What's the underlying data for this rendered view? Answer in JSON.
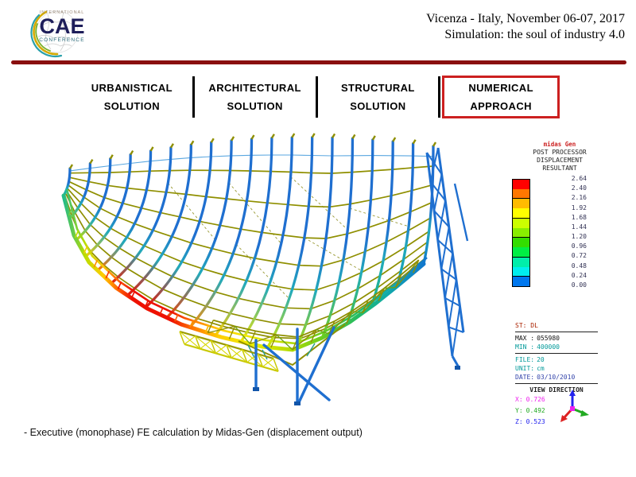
{
  "slide": {
    "logo": {
      "top_text": "INTERNATIONAL",
      "main_text": "CAE",
      "bottom_text": "CONFERENCE"
    },
    "title_line1": "Vicenza - Italy, November 06-07, 2017",
    "title_line2": "Simulation: the soul of industry 4.0",
    "caption": "- Executive (monophase) FE calculation by Midas-Gen (displacement output)"
  },
  "tabs": [
    {
      "line1": "URBANISTICAL",
      "line2": "SOLUTION",
      "active": false
    },
    {
      "line1": "ARCHITECTURAL",
      "line2": "SOLUTION",
      "active": false
    },
    {
      "line1": "STRUCTURAL",
      "line2": "SOLUTION",
      "active": false
    },
    {
      "line1": "NUMERICAL",
      "line2": "APPROACH",
      "active": true
    }
  ],
  "legend": {
    "header_lines": [
      "midas Gen",
      "POST PROCESSOR",
      "DISPLACEMENT",
      "RESULTANT"
    ],
    "values": [
      "2.64",
      "2.40",
      "2.16",
      "1.92",
      "1.68",
      "1.44",
      "1.20",
      "0.96",
      "0.72",
      "0.48",
      "0.24",
      "0.00"
    ],
    "colors": [
      "#ff0000",
      "#ff7700",
      "#ffbb00",
      "#ffff00",
      "#ccff00",
      "#88ee00",
      "#33dd00",
      "#00ee44",
      "#00eeaa",
      "#00eeee",
      "#0077ee"
    ]
  },
  "info_box": {
    "case_line": "ST: DL",
    "rows": [
      {
        "label": "MAX :",
        "value": "055980",
        "color": "#111111"
      },
      {
        "label": "MIN :",
        "value": "400000",
        "color": "#009999"
      },
      {
        "label": "FILE:",
        "value": "20",
        "color": "#009999"
      },
      {
        "label": "UNIT:",
        "value": "cm",
        "color": "#009999"
      },
      {
        "label": "DATE:",
        "value": "03/10/2010",
        "color": "#3344aa"
      }
    ],
    "view_direction": {
      "label": "VIEW DIRECTION",
      "axes": [
        {
          "name": "X:",
          "value": "0.726",
          "color": "#ee22ee"
        },
        {
          "name": "Y:",
          "value": "0.492",
          "color": "#22aa22"
        },
        {
          "name": "Z:",
          "value": "0.523",
          "color": "#2222ee"
        }
      ]
    }
  },
  "colors": {
    "rule_maroon": "#8a0f0f",
    "tab_border_red": "#cc2020",
    "rib_blue": "#1f6fd0",
    "stringer_olive": "#8f8f00",
    "support_blue": "#1f6fd0"
  }
}
